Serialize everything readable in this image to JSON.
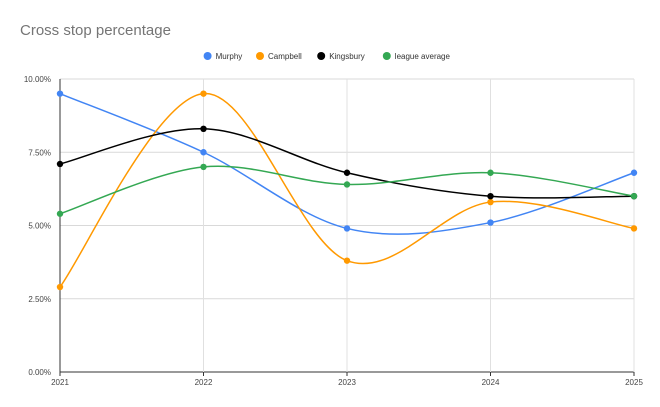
{
  "chart_data": {
    "type": "line",
    "title": "Cross stop percentage",
    "categories": [
      "2021",
      "2022",
      "2023",
      "2024",
      "2025"
    ],
    "ylim": [
      0,
      10
    ],
    "yticks": [
      "0.00%",
      "2.50%",
      "5.00%",
      "7.50%",
      "10.00%"
    ],
    "ytick_values": [
      0,
      2.5,
      5,
      7.5,
      10
    ],
    "grid": true,
    "legend_position": "top",
    "smooth": true,
    "series": [
      {
        "name": "Murphy",
        "color": "#4285F4",
        "values": [
          9.5,
          7.5,
          4.9,
          5.1,
          6.8
        ]
      },
      {
        "name": "Campbell",
        "color": "#FF9900",
        "values": [
          2.9,
          9.5,
          3.8,
          5.8,
          4.9
        ]
      },
      {
        "name": "Kingsbury",
        "color": "#000000",
        "values": [
          7.1,
          8.3,
          6.8,
          6.0,
          6.0
        ]
      },
      {
        "name": "league average",
        "color": "#34A853",
        "values": [
          5.4,
          7.0,
          6.4,
          6.8,
          6.0
        ]
      }
    ]
  }
}
